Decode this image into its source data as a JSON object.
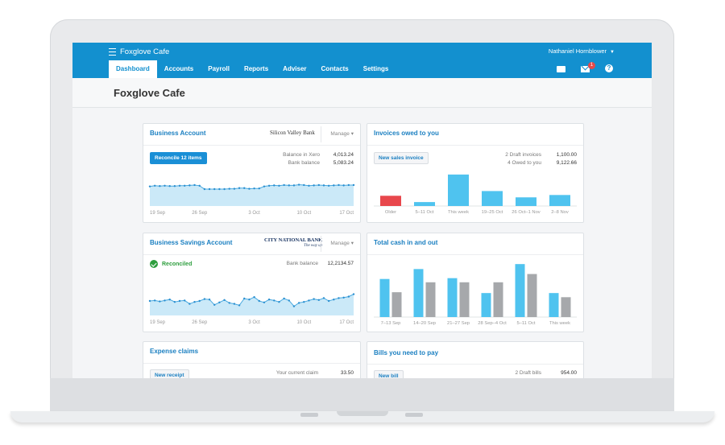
{
  "header": {
    "org_name": "Foxglove Cafe",
    "user_name": "Nathaniel Hornblower",
    "tabs": [
      {
        "label": "Dashboard",
        "active": true
      },
      {
        "label": "Accounts"
      },
      {
        "label": "Payroll"
      },
      {
        "label": "Reports"
      },
      {
        "label": "Adviser"
      },
      {
        "label": "Contacts"
      },
      {
        "label": "Settings"
      }
    ],
    "icons": [
      "files-icon",
      "mail-icon",
      "help-icon"
    ],
    "mail_badge": "1",
    "help_glyph": "?",
    "accent_color": "#1390cf"
  },
  "page_title": "Foxglove Cafe",
  "business_account": {
    "title": "Business Account",
    "bank": "Silicon Valley Bank",
    "manage": "Manage",
    "reconcile_button": "Reconcile 12 items",
    "balance_xero_label": "Balance in Xero",
    "balance_xero": "4,013.24",
    "bank_balance_label": "Bank balance",
    "bank_balance": "5,083.24"
  },
  "invoices": {
    "title": "Invoices owed to you",
    "new_button": "New sales invoice",
    "draft_label": "2 Draft invoices",
    "draft_value": "1,100.00",
    "owed_label": "4 Owed to you",
    "owed_value": "9,122.66"
  },
  "savings_account": {
    "title": "Business Savings Account",
    "bank": "CITY NATIONAL BANK",
    "bank_tagline": "The way up",
    "manage": "Manage",
    "status": "Reconciled",
    "bank_balance_label": "Bank balance",
    "bank_balance": "12,2134.57"
  },
  "cash": {
    "title": "Total cash in and out"
  },
  "expense": {
    "title": "Expense claims",
    "new_button": "New receipt",
    "claim_label": "Your current claim",
    "claim_value": "33.50"
  },
  "bills": {
    "title": "Bills you need to pay",
    "new_button": "New bill",
    "draft_label": "2 Draft bills",
    "draft_value": "954.00"
  },
  "chart_data": [
    {
      "type": "area",
      "name": "business-account-balance",
      "x_ticks": [
        "19 Sep",
        "26 Sep",
        "3 Oct",
        "10 Oct",
        "17 Oct"
      ],
      "values": [
        58,
        60,
        59,
        60,
        59,
        59,
        60,
        60,
        61,
        62,
        60,
        50,
        50,
        50,
        50,
        50,
        51,
        51,
        53,
        53,
        51,
        52,
        52,
        58,
        60,
        61,
        60,
        62,
        61,
        61,
        63,
        62,
        60,
        61,
        62,
        61,
        60,
        61,
        62,
        61,
        62,
        62
      ],
      "ylim": [
        0,
        100
      ],
      "color": "#49a9e0",
      "fill": "#cbe9f8"
    },
    {
      "type": "bar",
      "name": "invoices-owed",
      "categories": [
        "Older",
        "5–11 Oct",
        "This week",
        "19–25 Oct",
        "26 Oct–1 Nov",
        "2–8 Nov"
      ],
      "values": [
        13,
        5,
        40,
        19,
        11,
        14
      ],
      "colors": [
        "#e8474c",
        "#4fc3ef",
        "#4fc3ef",
        "#4fc3ef",
        "#4fc3ef",
        "#4fc3ef"
      ],
      "ylim": [
        0,
        45
      ]
    },
    {
      "type": "area",
      "name": "savings-account-balance",
      "x_ticks": [
        "19 Sep",
        "26 Sep",
        "3 Oct",
        "10 Oct",
        "17 Oct"
      ],
      "values": [
        30,
        31,
        29,
        31,
        33,
        28,
        30,
        31,
        24,
        28,
        30,
        34,
        33,
        22,
        27,
        32,
        26,
        24,
        21,
        35,
        33,
        38,
        30,
        27,
        33,
        31,
        28,
        35,
        31,
        19,
        26,
        28,
        31,
        34,
        32,
        36,
        30,
        33,
        36,
        37,
        39,
        44
      ],
      "ylim": [
        0,
        70
      ],
      "color": "#49a9e0",
      "fill": "#cbe9f8"
    },
    {
      "type": "bar",
      "name": "total-cash-in-out",
      "categories": [
        "7–13 Sep",
        "14–20 Sep",
        "21–27 Sep",
        "28 Sep–4 Oct",
        "5–11 Oct",
        "This week"
      ],
      "series": [
        {
          "values": [
            46,
            58,
            47,
            29,
            64,
            29
          ],
          "color": "#4fc3ef"
        },
        {
          "values": [
            30,
            42,
            42,
            42,
            52,
            24
          ],
          "color": "#a6a8ab"
        }
      ],
      "ylim": [
        0,
        70
      ]
    }
  ]
}
